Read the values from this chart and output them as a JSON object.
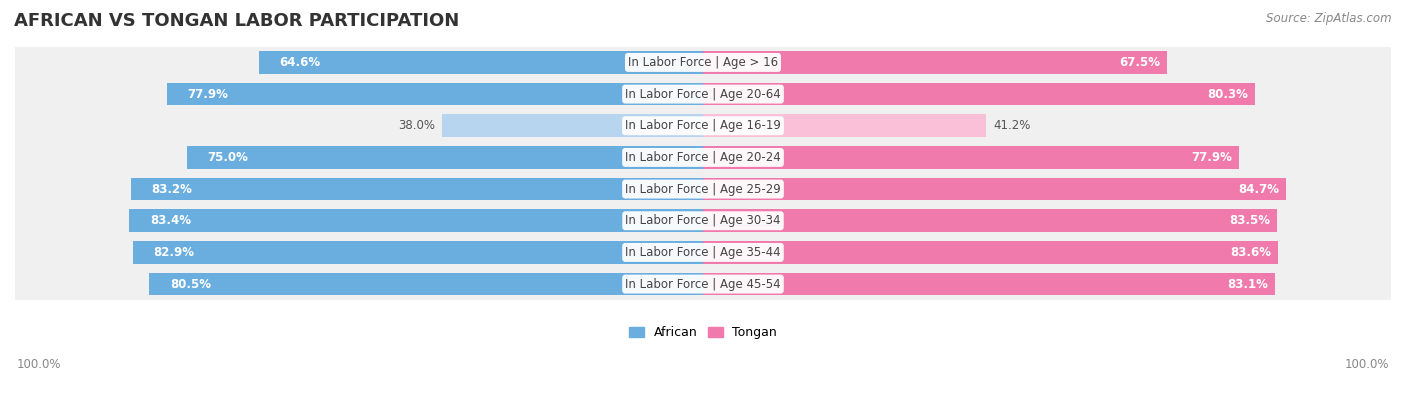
{
  "title": "AFRICAN VS TONGAN LABOR PARTICIPATION",
  "source": "Source: ZipAtlas.com",
  "categories": [
    "In Labor Force | Age > 16",
    "In Labor Force | Age 20-64",
    "In Labor Force | Age 16-19",
    "In Labor Force | Age 20-24",
    "In Labor Force | Age 25-29",
    "In Labor Force | Age 30-34",
    "In Labor Force | Age 35-44",
    "In Labor Force | Age 45-54"
  ],
  "african_values": [
    64.6,
    77.9,
    38.0,
    75.0,
    83.2,
    83.4,
    82.9,
    80.5
  ],
  "tongan_values": [
    67.5,
    80.3,
    41.2,
    77.9,
    84.7,
    83.5,
    83.6,
    83.1
  ],
  "african_color": "#6aaee0",
  "tongan_color": "#f07aab",
  "african_color_light": "#b8d5ef",
  "tongan_color_light": "#f9c0d7",
  "row_bg_even": "#f0f0f0",
  "row_bg_odd": "#e8e8e8",
  "african_label": "African",
  "tongan_label": "Tongan",
  "left_label": "100.0%",
  "right_label": "100.0%",
  "title_fontsize": 13,
  "value_fontsize": 8.5,
  "category_fontsize": 8.5,
  "source_fontsize": 8.5
}
